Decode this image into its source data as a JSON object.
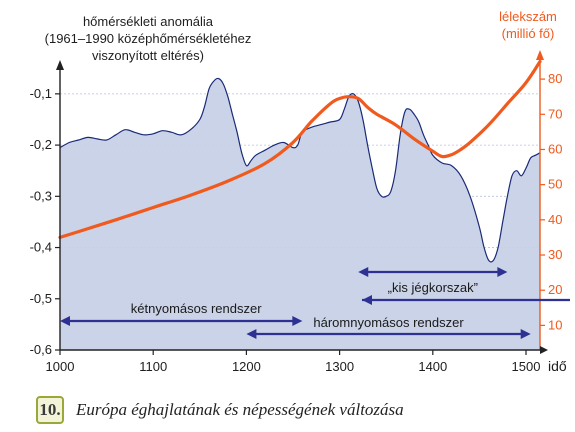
{
  "chart_data": {
    "type": "area",
    "left_axis": {
      "label_lines": [
        "hőmérsékleti anomália",
        "(1961–1990 középhőmérsékletéhez",
        "viszonyított eltérés)"
      ],
      "ticks": [
        "-0,1",
        "-0,2",
        "-0,3",
        "-0,4",
        "-0,5",
        "-0,6"
      ],
      "tick_values": [
        -0.1,
        -0.2,
        -0.3,
        -0.4,
        -0.5,
        -0.6
      ],
      "ylim": [
        -0.6,
        -0.03
      ]
    },
    "right_axis": {
      "label_lines": [
        "lélekszám",
        "(millió fő)"
      ],
      "ticks": [
        "10",
        "20",
        "30",
        "40",
        "50",
        "60",
        "70",
        "80"
      ],
      "tick_values": [
        10,
        20,
        30,
        40,
        50,
        60,
        70,
        80
      ],
      "ylim": [
        3,
        86
      ]
    },
    "x_axis": {
      "label": "idő",
      "ticks": [
        "1000",
        "1100",
        "1200",
        "1300",
        "1400",
        "1500"
      ],
      "tick_values": [
        1000,
        1100,
        1200,
        1300,
        1400,
        1500
      ],
      "xlim": [
        1000,
        1515
      ]
    },
    "series": [
      {
        "axis": "left",
        "render": "area",
        "x": [
          1000,
          1010,
          1020,
          1030,
          1040,
          1050,
          1060,
          1070,
          1080,
          1090,
          1100,
          1110,
          1120,
          1130,
          1140,
          1150,
          1155,
          1160,
          1165,
          1170,
          1175,
          1180,
          1185,
          1190,
          1195,
          1200,
          1205,
          1210,
          1220,
          1230,
          1240,
          1250,
          1255,
          1260,
          1270,
          1280,
          1290,
          1300,
          1305,
          1310,
          1315,
          1320,
          1325,
          1330,
          1335,
          1340,
          1345,
          1350,
          1355,
          1360,
          1365,
          1370,
          1375,
          1380,
          1385,
          1390,
          1395,
          1400,
          1410,
          1420,
          1430,
          1440,
          1450,
          1455,
          1460,
          1465,
          1470,
          1475,
          1480,
          1485,
          1490,
          1495,
          1500,
          1505,
          1510,
          1515
        ],
        "values": [
          -0.205,
          -0.195,
          -0.19,
          -0.185,
          -0.188,
          -0.19,
          -0.18,
          -0.17,
          -0.175,
          -0.18,
          -0.178,
          -0.172,
          -0.175,
          -0.18,
          -0.17,
          -0.15,
          -0.125,
          -0.09,
          -0.075,
          -0.07,
          -0.08,
          -0.105,
          -0.14,
          -0.175,
          -0.215,
          -0.24,
          -0.23,
          -0.22,
          -0.21,
          -0.2,
          -0.195,
          -0.205,
          -0.2,
          -0.175,
          -0.165,
          -0.16,
          -0.155,
          -0.15,
          -0.13,
          -0.105,
          -0.1,
          -0.115,
          -0.15,
          -0.2,
          -0.245,
          -0.285,
          -0.3,
          -0.3,
          -0.29,
          -0.25,
          -0.18,
          -0.135,
          -0.13,
          -0.14,
          -0.155,
          -0.18,
          -0.2,
          -0.22,
          -0.235,
          -0.24,
          -0.26,
          -0.3,
          -0.36,
          -0.4,
          -0.425,
          -0.425,
          -0.4,
          -0.35,
          -0.3,
          -0.26,
          -0.25,
          -0.26,
          -0.245,
          -0.225,
          -0.22,
          -0.215
        ]
      },
      {
        "axis": "right",
        "render": "line",
        "x": [
          1000,
          1030,
          1060,
          1100,
          1140,
          1180,
          1220,
          1250,
          1270,
          1290,
          1300,
          1310,
          1320,
          1330,
          1340,
          1360,
          1380,
          1400,
          1410,
          1420,
          1430,
          1440,
          1460,
          1480,
          1500,
          1515
        ],
        "values": [
          35,
          37.5,
          40,
          43.5,
          47,
          51,
          56,
          62,
          68,
          73,
          74.5,
          75,
          74.5,
          72,
          70,
          67,
          63,
          59.5,
          58,
          58.5,
          60,
          62,
          67,
          73,
          79,
          85
        ]
      }
    ],
    "annotations": {
      "ketnyomasos": "kétnyomásos rendszer",
      "haromnyomasos": "háromnyomásos rendszer",
      "jegkorszak": "„kis jégkorszak”"
    },
    "annotation_spans": {
      "ketnyomasos": [
        1000,
        1260
      ],
      "haromnyomasos": [
        1200,
        1505
      ],
      "jegkorszak": [
        1320,
        1480
      ]
    },
    "colors": {
      "area_fill": "#c7d1e6",
      "area_stroke": "#1a2a78",
      "population_line": "#f05a1e",
      "left_axis": "#222222",
      "right_axis": "#f05a1e",
      "grid": "#b8c2d6",
      "arrows": "#2e3192"
    },
    "grid": true
  },
  "caption": {
    "number": "10.",
    "text": "Európa éghajlatának és népességének változása"
  }
}
